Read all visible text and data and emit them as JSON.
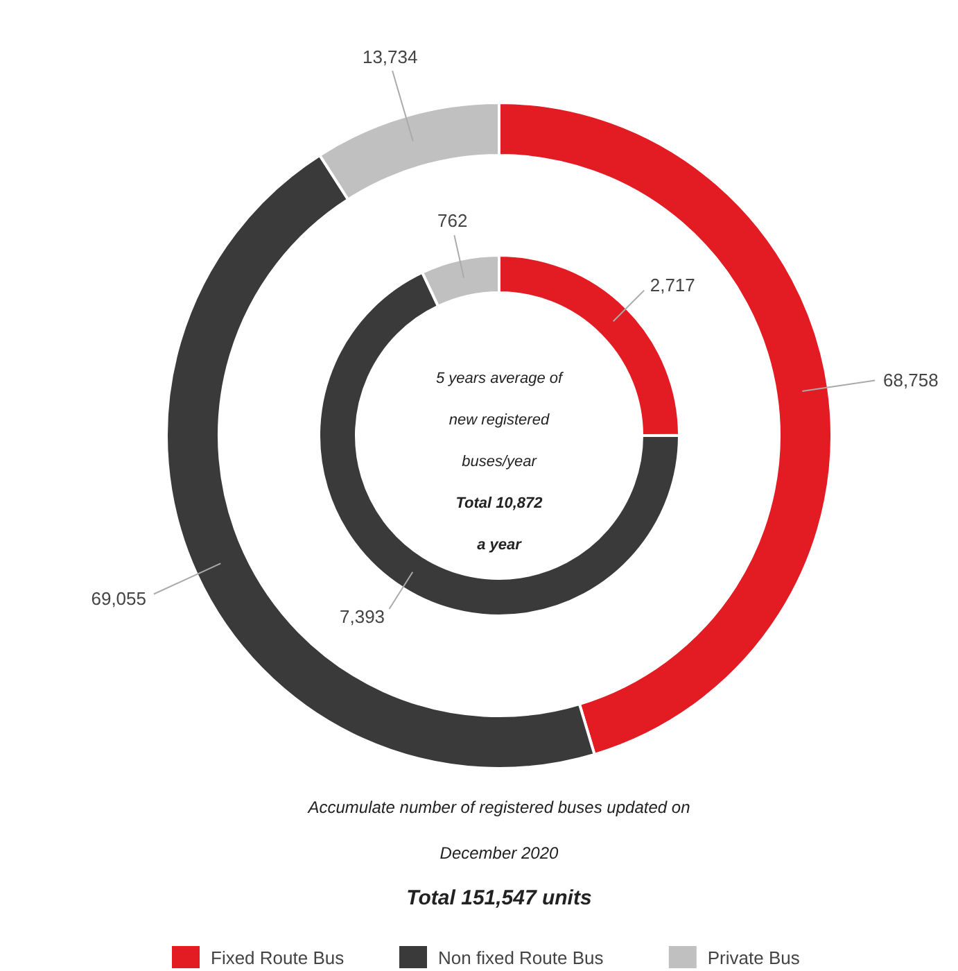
{
  "chart_data": {
    "type": "donut",
    "categories": [
      "Fixed Route Bus",
      "Non fixed Route Bus",
      "Private Bus"
    ],
    "colors": [
      "#e31b23",
      "#3a3a3a",
      "#c0c0c0"
    ],
    "legend": "bottom",
    "series": [
      {
        "values": [
          68758,
          69055,
          13734
        ],
        "value_labels": [
          "68,758",
          "69,055",
          "13,734"
        ]
      },
      {
        "values": [
          2717,
          7393,
          762
        ],
        "value_labels": [
          "2,717",
          "7,393",
          "762"
        ]
      }
    ],
    "annotations": [
      "5 years average of new registered buses/year",
      "Total 10,872",
      "a year",
      "Accumulate number of registered buses updated on December 2020",
      "Total 151,547 units"
    ]
  }
}
